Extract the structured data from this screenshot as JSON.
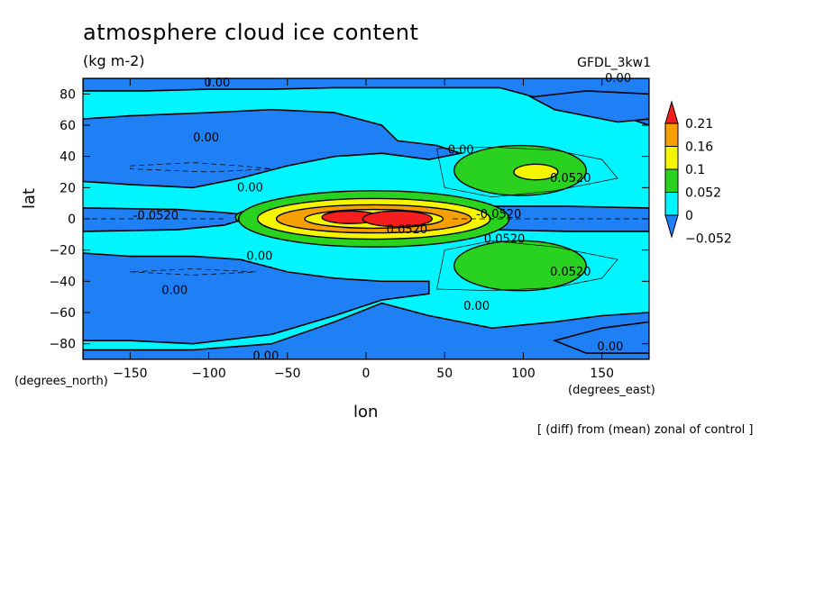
{
  "title": "atmosphere cloud ice content",
  "units": "(kg m-2)",
  "model": "GFDL_3kw1",
  "footnote": "[ (diff) from (mean) zonal of control ]",
  "chart_data": {
    "type": "heatmap",
    "title": "atmosphere cloud ice content",
    "xlabel": "lon",
    "ylabel": "lat",
    "x_units": "(degrees_east)",
    "y_units": "(degrees_north)",
    "xlim": [
      -180,
      180
    ],
    "ylim": [
      -90,
      90
    ],
    "x_ticks": [
      -150,
      -100,
      -50,
      0,
      50,
      100,
      150
    ],
    "y_ticks": [
      -80,
      -60,
      -40,
      -20,
      0,
      20,
      40,
      60,
      80
    ],
    "colorbar": {
      "levels": [
        -0.052,
        0,
        0.052,
        0.1,
        0.16,
        0.21
      ],
      "labels": [
        "-0.052",
        "0",
        "0.052",
        "0.1",
        "0.16",
        "0.21"
      ],
      "colors": [
        "#1f7ff5",
        "#00f5ff",
        "#28d21e",
        "#f5f500",
        "#f5a000",
        "#f51e1e"
      ]
    },
    "contour_labels": [
      "0.00",
      "0.00",
      "0.00",
      "0.00",
      "0.00",
      "0.00",
      "0.00",
      "0.00",
      "0.00",
      "0.00",
      "-0.0520",
      "-0.0520",
      "0.0520",
      "0.0520",
      "0.0520",
      "0.0520"
    ]
  }
}
